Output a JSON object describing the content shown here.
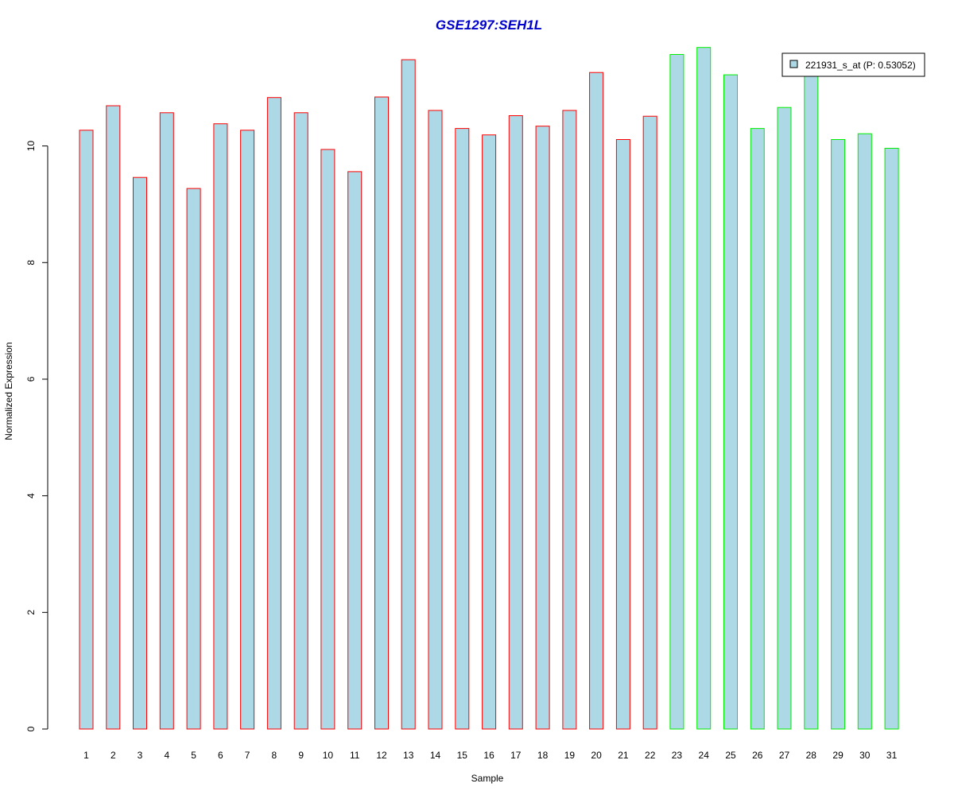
{
  "chart_data": {
    "type": "bar",
    "title": "GSE1297:SEH1L",
    "title_color": "#0000CC",
    "xlabel": "Sample",
    "ylabel": "Normalized Expression",
    "ylim": [
      0,
      11.7
    ],
    "yticks": [
      0,
      2,
      4,
      6,
      8,
      10
    ],
    "grid": false,
    "legend_position": "top-right",
    "categories": [
      "1",
      "2",
      "3",
      "4",
      "5",
      "6",
      "7",
      "8",
      "9",
      "10",
      "11",
      "12",
      "13",
      "14",
      "15",
      "16",
      "17",
      "18",
      "19",
      "20",
      "21",
      "22",
      "23",
      "24",
      "25",
      "26",
      "27",
      "28",
      "29",
      "30",
      "31"
    ],
    "series": [
      {
        "name": "221931_s_at (P: 0.53052)",
        "fill": "#ADD8E6",
        "values": [
          10.27,
          10.69,
          9.46,
          10.57,
          9.27,
          10.38,
          10.27,
          10.83,
          10.57,
          9.94,
          9.56,
          10.84,
          11.48,
          10.61,
          10.3,
          10.19,
          10.52,
          10.34,
          10.61,
          11.26,
          10.11,
          10.51,
          11.57,
          11.69,
          11.22,
          10.3,
          10.66,
          11.29,
          10.11,
          10.21,
          9.96
        ],
        "outline_colors": [
          "#FF0000",
          "#FF0000",
          "#FF0000",
          "#FF0000",
          "#FF0000",
          "#FF0000",
          "#FF0000",
          "#FF0000",
          "#FF0000",
          "#FF0000",
          "#FF0000",
          "#FF0000",
          "#FF0000",
          "#FF0000",
          "#FF0000",
          "#FF0000",
          "#FF0000",
          "#FF0000",
          "#FF0000",
          "#FF0000",
          "#FF0000",
          "#FF0000",
          "#00EE00",
          "#00EE00",
          "#00EE00",
          "#00EE00",
          "#00EE00",
          "#00EE00",
          "#00EE00",
          "#00EE00",
          "#00EE00"
        ]
      }
    ]
  }
}
